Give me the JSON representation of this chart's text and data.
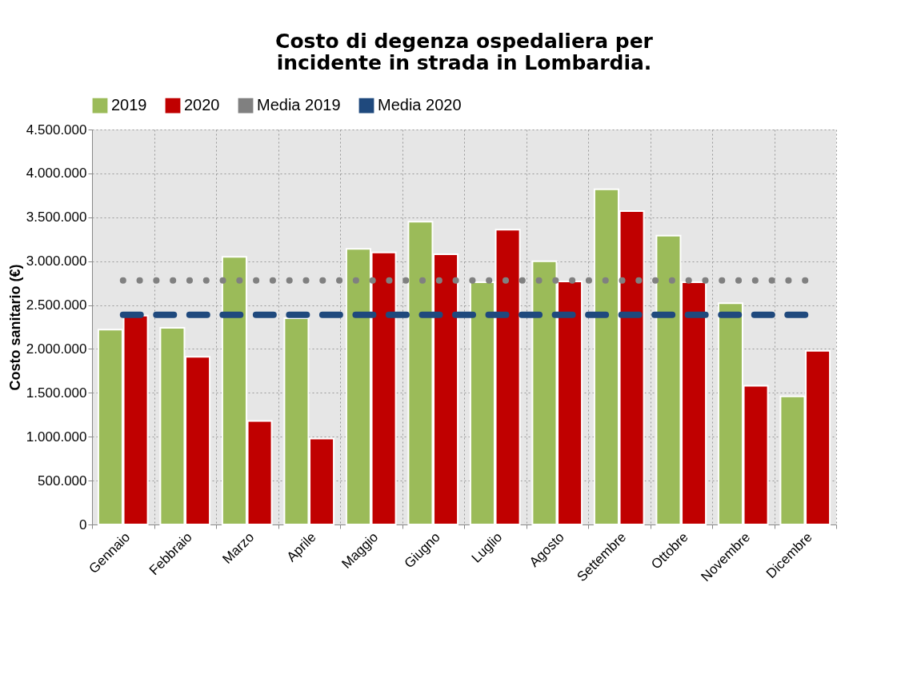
{
  "chart_data": {
    "type": "bar",
    "title": "Costo di degenza ospedaliera per\nincidente in strada in Lombardia.",
    "ylabel": "Costo sanitario (€)",
    "categories": [
      "Gennaio",
      "Febbraio",
      "Marzo",
      "Aprile",
      "Maggio",
      "Giugno",
      "Luglio",
      "Agosto",
      "Settembre",
      "Ottobre",
      "Novembre",
      "Dicembre"
    ],
    "series": [
      {
        "name": "2019",
        "color": "#9bbb59",
        "values": [
          2220000,
          2240000,
          3050000,
          2350000,
          3140000,
          3450000,
          2760000,
          3000000,
          3820000,
          3290000,
          2520000,
          1460000
        ]
      },
      {
        "name": "2020",
        "color": "#c00000",
        "values": [
          2380000,
          1910000,
          1180000,
          980000,
          3100000,
          3080000,
          3360000,
          2770000,
          3570000,
          2760000,
          1580000,
          1980000
        ]
      },
      {
        "name": "Media 2019",
        "type": "line",
        "line_style": "dotted",
        "color": "#808080",
        "values": [
          2780000,
          2780000,
          2780000,
          2780000,
          2780000,
          2780000,
          2780000,
          2780000,
          2780000,
          2780000,
          2780000,
          2780000
        ]
      },
      {
        "name": "Media 2020",
        "type": "line",
        "line_style": "dashed",
        "color": "#1f497d",
        "values": [
          2390000,
          2390000,
          2390000,
          2390000,
          2390000,
          2390000,
          2390000,
          2390000,
          2390000,
          2390000,
          2390000,
          2390000
        ]
      }
    ],
    "ylim": [
      0,
      4500000
    ],
    "yticks": [
      {
        "value": 0,
        "label": "0"
      },
      {
        "value": 500000,
        "label": "500.000"
      },
      {
        "value": 1000000,
        "label": "1.000.000"
      },
      {
        "value": 1500000,
        "label": "1.500.000"
      },
      {
        "value": 2000000,
        "label": "2.000.000"
      },
      {
        "value": 2500000,
        "label": "2.500.000"
      },
      {
        "value": 3000000,
        "label": "3.000.000"
      },
      {
        "value": 3500000,
        "label": "3.500.000"
      },
      {
        "value": 4000000,
        "label": "4.000.000"
      },
      {
        "value": 4500000,
        "label": "4.500.000"
      }
    ],
    "grid": true,
    "legend": "top"
  }
}
